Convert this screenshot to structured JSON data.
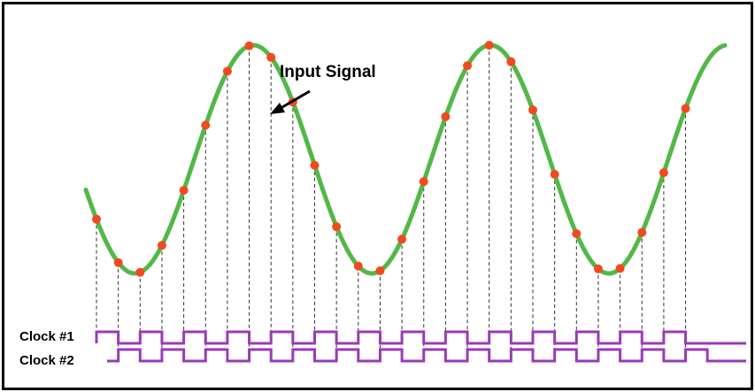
{
  "annotation": {
    "text": "Input Signal"
  },
  "clock_labels": [
    "Clock #1",
    "Clock #2"
  ],
  "colors": {
    "signal": "#52b848",
    "sample": "#f24a1e",
    "clock": "#9a3ab8",
    "guide": "#333333",
    "frame": "#000000"
  },
  "chart_data": {
    "type": "line",
    "signal": {
      "shape": "sine",
      "cycles": 2.7,
      "y_range": [
        -1,
        1
      ]
    },
    "samples": {
      "clock1_indices": [
        1,
        3,
        5,
        7,
        9,
        11,
        13,
        15,
        17,
        19,
        21,
        23,
        25,
        27
      ],
      "clock2_indices": [
        2,
        4,
        6,
        8,
        10,
        12,
        14,
        16,
        18,
        20,
        22,
        24,
        26,
        28
      ],
      "count": 28
    }
  }
}
